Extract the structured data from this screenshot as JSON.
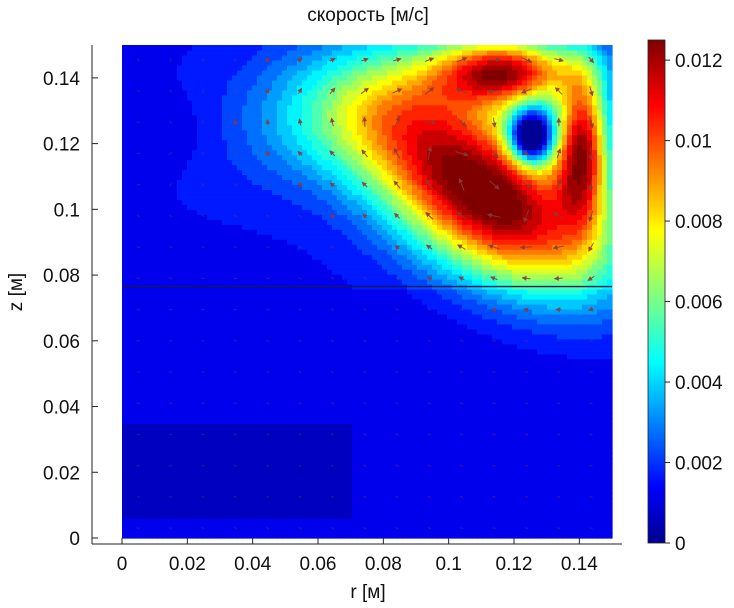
{
  "chart_data": {
    "type": "heatmap",
    "subtype": "filled-contour with velocity vector overlay",
    "title": "скорость [м/с]",
    "xlabel": "r [м]",
    "ylabel": "z [м]",
    "xlim": [
      0,
      0.15
    ],
    "ylim": [
      0,
      0.15
    ],
    "x_ticks": [
      "0",
      "0.02",
      "0.04",
      "0.06",
      "0.08",
      "0.1",
      "0.12",
      "0.14"
    ],
    "y_ticks": [
      "0",
      "0.02",
      "0.04",
      "0.06",
      "0.08",
      "0.1",
      "0.12",
      "0.14"
    ],
    "colorbar": {
      "min": 0,
      "max": 0.0125,
      "ticks": [
        "0",
        "0.002",
        "0.004",
        "0.006",
        "0.008",
        "0.01",
        "0.012"
      ],
      "colormap": "jet"
    },
    "interface_z": 0.0765,
    "hotspots": [
      {
        "r": 0.112,
        "z": 0.104,
        "value": 0.0125,
        "sr": 0.028,
        "sz": 0.015,
        "rot": -0.55
      },
      {
        "r": 0.118,
        "z": 0.142,
        "value": 0.0085,
        "sr": 0.014,
        "sz": 0.0065,
        "rot": 0.0
      },
      {
        "r": 0.141,
        "z": 0.12,
        "value": 0.0095,
        "sr": 0.0055,
        "sz": 0.016,
        "rot": 0.0
      },
      {
        "r": 0.085,
        "z": 0.134,
        "value": 0.0045,
        "sr": 0.03,
        "sz": 0.014,
        "rot": 0.2
      },
      {
        "r": 0.125,
        "z": 0.122,
        "value": -0.009,
        "sr": 0.0045,
        "sz": 0.0055,
        "rot": 0.0
      },
      {
        "r": 0.01,
        "z": 0.124,
        "value": -0.0006,
        "sr": 0.015,
        "sz": 0.008,
        "rot": 0.0
      }
    ]
  }
}
